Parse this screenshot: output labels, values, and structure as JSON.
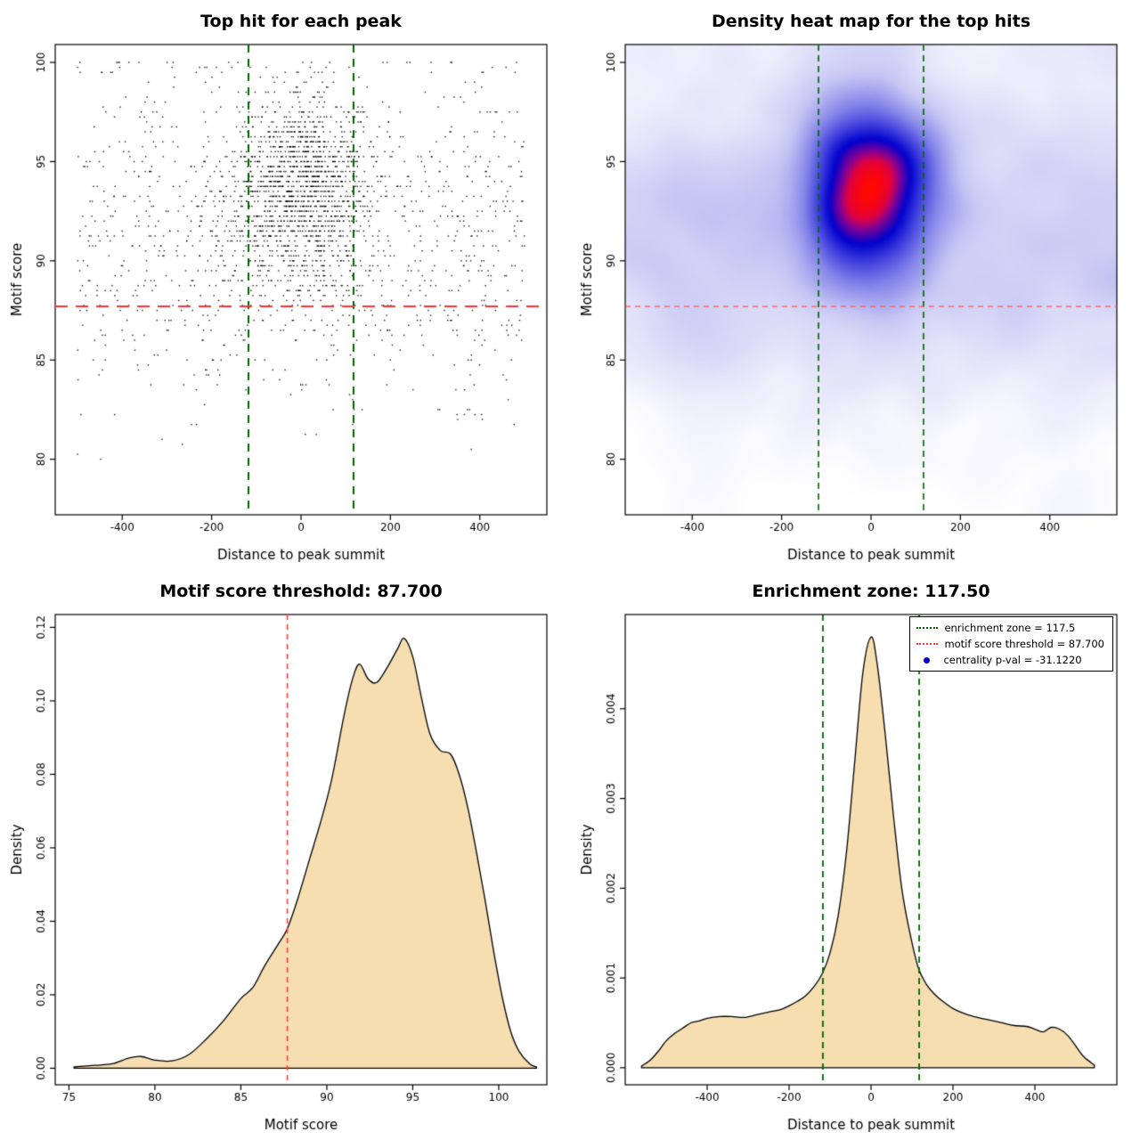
{
  "page": {
    "background": "#FFFFFF"
  },
  "chart_data": [
    {
      "id": "top-hit-scatter",
      "type": "scatter",
      "title": "Top hit for each peak",
      "xlabel": "Distance to peak summit",
      "ylabel": "Motif score",
      "xlim": [
        -550,
        550
      ],
      "ylim": [
        77.2,
        100.9
      ],
      "xticks": [
        -400,
        -200,
        0,
        200,
        400
      ],
      "xtick_labels": [
        "-400",
        "-200",
        "0",
        "200",
        "400"
      ],
      "yticks": [
        80,
        85,
        90,
        95,
        100
      ],
      "ytick_labels": [
        "80",
        "85",
        "90",
        "95",
        "100"
      ],
      "grid": false,
      "point_color": "#000000",
      "enrichment_zone": {
        "values": [
          -117.5,
          117.5
        ],
        "color": "#006400",
        "width": 2,
        "dash": [
          9,
          7
        ]
      },
      "score_threshold_hline": {
        "value": 87.7,
        "color": "#FF3030",
        "width": 2,
        "dash": [
          14,
          9
        ]
      },
      "points_model": {
        "n": 2600,
        "seed": 42,
        "cluster_frac": 0.55,
        "cluster_x_mean": -5,
        "cluster_x_sd": 80,
        "cluster_y_mean": 93.6,
        "cluster_y_sd": 2.4,
        "bg_y_mean": 91.3,
        "bg_y_sd": 4.3,
        "x_min": -500,
        "x_max": 500,
        "y_min": 78,
        "y_max": 100.1,
        "y_quantum": 0.25
      }
    },
    {
      "id": "top-hit-density-heatmap",
      "type": "heatmap",
      "title": "Density heat map for the top hits",
      "xlabel": "Distance to peak summit",
      "ylabel": "Motif score",
      "xlim": [
        -550,
        550
      ],
      "ylim": [
        77.2,
        100.9
      ],
      "xticks": [
        -400,
        -200,
        0,
        200,
        400
      ],
      "xtick_labels": [
        "-400",
        "-200",
        "0",
        "200",
        "400"
      ],
      "yticks": [
        80,
        85,
        90,
        95,
        100
      ],
      "ytick_labels": [
        "80",
        "85",
        "90",
        "95",
        "100"
      ],
      "grid": false,
      "heat_stops": [
        [
          0,
          "#FFFFFF"
        ],
        [
          0.12,
          "#EAEAFB"
        ],
        [
          0.3,
          "#C6C6F4"
        ],
        [
          0.5,
          "#8282E9"
        ],
        [
          0.66,
          "#3C3CDC"
        ],
        [
          0.78,
          "#0000CD"
        ],
        [
          0.88,
          "#8A0090"
        ],
        [
          0.93,
          "#E00040"
        ],
        [
          1,
          "#FF0800"
        ]
      ],
      "gamma": 0.55,
      "grid_size": 130,
      "blur_radius": 4,
      "blur_passes": 3,
      "enrichment_zone": {
        "values": [
          -117.5,
          117.5
        ],
        "color": "#006400",
        "width": 1.6,
        "dash": [
          7,
          5
        ]
      },
      "score_threshold_hline": {
        "value": 87.7,
        "color": "#FF5555",
        "width": 1.3,
        "dash": [
          6,
          5
        ]
      },
      "points_model": {
        "n": 3200,
        "seed": 7,
        "cluster_frac": 0.55,
        "cluster_x_mean": -5,
        "cluster_x_sd": 80,
        "cluster_y_mean": 93.7,
        "cluster_y_sd": 2.5,
        "bg_y_mean": 91.3,
        "bg_y_sd": 4.3,
        "x_min": -545,
        "x_max": 545,
        "y_min": 77.4,
        "y_max": 100.6
      }
    },
    {
      "id": "motif-score-density",
      "type": "density",
      "title": "Motif score threshold: 87.700",
      "xlabel": "Motif score",
      "ylabel": "Density",
      "xlim": [
        74.2,
        102.8
      ],
      "ylim": [
        -0.0045,
        0.1235
      ],
      "xticks": [
        75,
        80,
        85,
        90,
        95,
        100
      ],
      "xtick_labels": [
        "75",
        "80",
        "85",
        "90",
        "95",
        "100"
      ],
      "yticks": [
        0,
        0.02,
        0.04,
        0.06,
        0.08,
        0.1,
        0.12
      ],
      "ytick_labels": [
        "0.00",
        "0.02",
        "0.04",
        "0.06",
        "0.08",
        "0.10",
        "0.12"
      ],
      "grid": false,
      "fill": "#F7DEB1",
      "stroke": "#000000",
      "score_threshold_vline": {
        "value": 87.7,
        "color": "#FF4040",
        "width": 1.6,
        "dash": [
          6,
          5
        ]
      },
      "curve": [
        [
          75.3,
          0.0004
        ],
        [
          76.5,
          0.0008
        ],
        [
          77.5,
          0.0012
        ],
        [
          78.5,
          0.0028
        ],
        [
          79.2,
          0.0032
        ],
        [
          80,
          0.0022
        ],
        [
          81,
          0.002
        ],
        [
          82,
          0.0038
        ],
        [
          83,
          0.008
        ],
        [
          84,
          0.013
        ],
        [
          85,
          0.019
        ],
        [
          85.7,
          0.022
        ],
        [
          86.4,
          0.028
        ],
        [
          87.2,
          0.034
        ],
        [
          87.7,
          0.038
        ],
        [
          88.3,
          0.046
        ],
        [
          89,
          0.057
        ],
        [
          89.7,
          0.068
        ],
        [
          90.3,
          0.079
        ],
        [
          91,
          0.096
        ],
        [
          91.5,
          0.106
        ],
        [
          91.9,
          0.11
        ],
        [
          92.4,
          0.106
        ],
        [
          92.9,
          0.105
        ],
        [
          93.5,
          0.109
        ],
        [
          94.1,
          0.114
        ],
        [
          94.5,
          0.117
        ],
        [
          95,
          0.112
        ],
        [
          95.5,
          0.101
        ],
        [
          96,
          0.091
        ],
        [
          96.6,
          0.0865
        ],
        [
          97.2,
          0.0855
        ],
        [
          97.7,
          0.08
        ],
        [
          98.2,
          0.071
        ],
        [
          98.7,
          0.059
        ],
        [
          99.2,
          0.046
        ],
        [
          99.7,
          0.032
        ],
        [
          100.2,
          0.0195
        ],
        [
          100.7,
          0.01
        ],
        [
          101.2,
          0.0045
        ],
        [
          101.8,
          0.0012
        ],
        [
          102.2,
          0.0003
        ]
      ]
    },
    {
      "id": "summit-distance-density",
      "type": "density",
      "title": "Enrichment zone: 117.50",
      "xlabel": "Distance to peak summit",
      "ylabel": "Density",
      "xlim": [
        -600,
        600
      ],
      "ylim": [
        -0.00019,
        0.00505
      ],
      "xticks": [
        -400,
        -200,
        0,
        200,
        400
      ],
      "xtick_labels": [
        "-400",
        "-200",
        "0",
        "200",
        "400"
      ],
      "yticks": [
        0,
        0.001,
        0.002,
        0.003,
        0.004
      ],
      "ytick_labels": [
        "0.000",
        "0.001",
        "0.002",
        "0.003",
        "0.004"
      ],
      "grid": false,
      "fill": "#F7DEB1",
      "stroke": "#000000",
      "enrichment_zone": {
        "values": [
          -117.5,
          117.5
        ],
        "color": "#006400",
        "width": 1.8,
        "dash": [
          7,
          5
        ]
      },
      "curve": [
        [
          -560,
          2e-05
        ],
        [
          -540,
          8e-05
        ],
        [
          -520,
          0.00018
        ],
        [
          -500,
          0.0003
        ],
        [
          -480,
          0.00038
        ],
        [
          -460,
          0.00044
        ],
        [
          -440,
          0.0005
        ],
        [
          -420,
          0.00052
        ],
        [
          -400,
          0.00055
        ],
        [
          -370,
          0.00057
        ],
        [
          -340,
          0.00057
        ],
        [
          -310,
          0.00056
        ],
        [
          -280,
          0.00059
        ],
        [
          -250,
          0.00062
        ],
        [
          -220,
          0.00065
        ],
        [
          -200,
          0.00069
        ],
        [
          -180,
          0.00074
        ],
        [
          -160,
          0.0008
        ],
        [
          -140,
          0.0009
        ],
        [
          -120,
          0.00104
        ],
        [
          -100,
          0.00128
        ],
        [
          -80,
          0.0017
        ],
        [
          -60,
          0.0024
        ],
        [
          -40,
          0.0034
        ],
        [
          -20,
          0.0044
        ],
        [
          0,
          0.0048
        ],
        [
          15,
          0.0045
        ],
        [
          35,
          0.0037
        ],
        [
          55,
          0.0028
        ],
        [
          75,
          0.002
        ],
        [
          95,
          0.0015
        ],
        [
          115,
          0.00112
        ],
        [
          135,
          0.00093
        ],
        [
          155,
          0.00082
        ],
        [
          175,
          0.00074
        ],
        [
          200,
          0.00066
        ],
        [
          230,
          0.0006
        ],
        [
          260,
          0.00056
        ],
        [
          290,
          0.00053
        ],
        [
          320,
          0.0005
        ],
        [
          350,
          0.00047
        ],
        [
          380,
          0.00046
        ],
        [
          400,
          0.00043
        ],
        [
          420,
          0.0004
        ],
        [
          440,
          0.00045
        ],
        [
          460,
          0.00043
        ],
        [
          480,
          0.00036
        ],
        [
          500,
          0.00024
        ],
        [
          520,
          0.00012
        ],
        [
          545,
          3e-05
        ]
      ],
      "legend": {
        "items": [
          {
            "label": "enrichment zone = 117.5",
            "swatch": "dotted-line",
            "color": "#006400"
          },
          {
            "label": "motif score threshold = 87.700",
            "swatch": "dotted-line",
            "color": "#FF3030"
          },
          {
            "label": "centrality p-val = -31.1220",
            "swatch": "dot",
            "color": "#0000CD"
          }
        ]
      }
    }
  ]
}
